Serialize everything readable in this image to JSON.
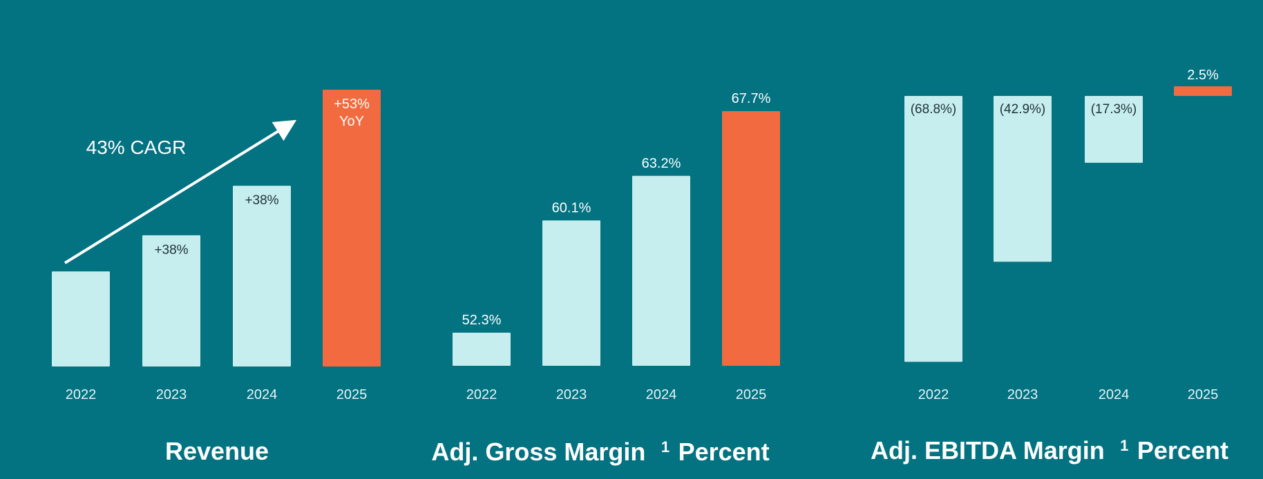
{
  "colors": {
    "background": "#037281",
    "bar": "#c6eeee",
    "highlight": "#f26a3f"
  },
  "chart_data": [
    {
      "type": "bar",
      "title": "Revenue",
      "categories": [
        "2022",
        "2023",
        "2024",
        "2025"
      ],
      "values": [
        1.0,
        1.38,
        1.9,
        2.91
      ],
      "data_labels": [
        "",
        "+38%",
        "+38%",
        "+53%\nYoY"
      ],
      "highlight_index": 3,
      "annotation": "43% CAGR",
      "ylim": [
        0,
        3.2
      ]
    },
    {
      "type": "bar",
      "title": "Adj. Gross Margin",
      "title_footnote": "1",
      "title_suffix": "Percent",
      "categories": [
        "2022",
        "2023",
        "2024",
        "2025"
      ],
      "values": [
        52.3,
        60.1,
        63.2,
        67.7
      ],
      "data_labels": [
        "52.3%",
        "60.1%",
        "63.2%",
        "67.7%"
      ],
      "highlight_index": 3,
      "ylim": [
        50,
        70
      ]
    },
    {
      "type": "bar",
      "title": "Adj. EBITDA Margin",
      "title_footnote": "1",
      "title_suffix": "Percent",
      "categories": [
        "2022",
        "2023",
        "2024",
        "2025"
      ],
      "values": [
        -68.8,
        -42.9,
        -17.3,
        2.5
      ],
      "data_labels": [
        "(68.8%)",
        "(42.9%)",
        "(17.3%)",
        "2.5%"
      ],
      "highlight_index": 3,
      "ylim": [
        -70,
        5
      ]
    }
  ]
}
